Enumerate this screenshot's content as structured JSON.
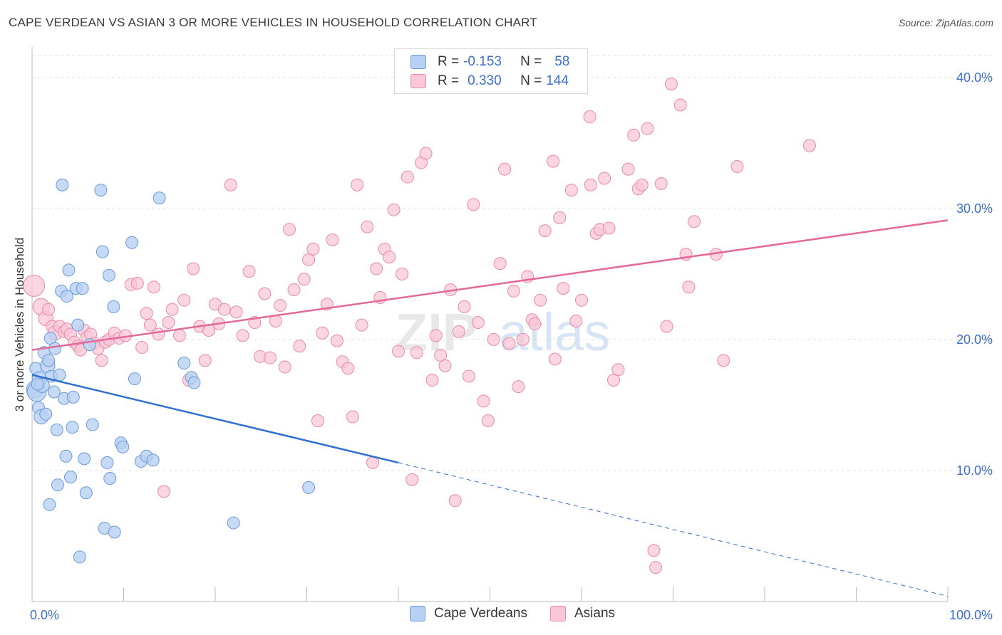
{
  "header": {
    "title": "CAPE VERDEAN VS ASIAN 3 OR MORE VEHICLES IN HOUSEHOLD CORRELATION CHART",
    "source": "Source: ZipAtlas.com"
  },
  "legend": {
    "series": [
      {
        "r_label": "R =",
        "r_value": "-0.153",
        "n_label": "N =",
        "n_value": "58"
      },
      {
        "r_label": "R =",
        "r_value": "0.330",
        "n_label": "N =",
        "n_value": "144"
      }
    ],
    "bottom": [
      "Cape Verdeans",
      "Asians"
    ]
  },
  "watermark": {
    "zip": "ZIP",
    "atlas": "atlas"
  },
  "colors": {
    "blue_fill": "#b8d0f2",
    "blue_stroke": "#6a9bdc",
    "blue_line": "#2f6fd1",
    "pink_fill": "#f9c7d6",
    "pink_stroke": "#e98aa8",
    "pink_line": "#e4699a",
    "axis_text": "#3b6fd0",
    "grid": "#e2e2e2"
  },
  "chart_data": {
    "type": "scatter",
    "title": "CAPE VERDEAN VS ASIAN 3 OR MORE VEHICLES IN HOUSEHOLD CORRELATION CHART",
    "xlabel": "",
    "ylabel": "3 or more Vehicles in Household",
    "xlim": [
      0,
      100
    ],
    "ylim": [
      0,
      42
    ],
    "x_tick_labels": [
      "0.0%",
      "100.0%"
    ],
    "y_ticks": [
      10,
      20,
      30,
      40
    ],
    "y_tick_labels": [
      "10.0%",
      "20.0%",
      "30.0%",
      "40.0%"
    ],
    "series": [
      {
        "name": "Cape Verdeans",
        "r": -0.153,
        "n": 58,
        "trend": {
          "x0": 0,
          "y0": 17.3,
          "x1": 40,
          "y1": 10.6,
          "dash_to_x": 100,
          "dash_to_y": 0.4
        },
        "points": [
          [
            0.3,
            16.2,
            7
          ],
          [
            0.4,
            17.8,
            5
          ],
          [
            0.5,
            16.0,
            8
          ],
          [
            0.7,
            14.8,
            5
          ],
          [
            0.8,
            17.0,
            6
          ],
          [
            1.0,
            14.1,
            6
          ],
          [
            1.1,
            16.5,
            6
          ],
          [
            1.3,
            19.0,
            5
          ],
          [
            1.5,
            14.3,
            5
          ],
          [
            1.7,
            18.0,
            6
          ],
          [
            1.8,
            18.4,
            5
          ],
          [
            1.9,
            7.4,
            5
          ],
          [
            2.0,
            20.1,
            5
          ],
          [
            2.1,
            17.2,
            5
          ],
          [
            2.4,
            16.0,
            5
          ],
          [
            2.5,
            19.3,
            5
          ],
          [
            2.7,
            13.1,
            5
          ],
          [
            2.8,
            8.9,
            5
          ],
          [
            3.0,
            17.3,
            5
          ],
          [
            3.2,
            23.7,
            5
          ],
          [
            3.3,
            31.8,
            5
          ],
          [
            3.5,
            15.5,
            5
          ],
          [
            3.7,
            11.1,
            5
          ],
          [
            3.8,
            23.3,
            5
          ],
          [
            4.0,
            25.3,
            5
          ],
          [
            4.2,
            9.5,
            5
          ],
          [
            4.4,
            13.3,
            5
          ],
          [
            4.5,
            15.6,
            5
          ],
          [
            4.8,
            23.9,
            5
          ],
          [
            5.0,
            21.1,
            5
          ],
          [
            5.2,
            3.4,
            5
          ],
          [
            5.5,
            23.9,
            5
          ],
          [
            5.7,
            10.9,
            5
          ],
          [
            5.9,
            8.3,
            5
          ],
          [
            6.3,
            19.6,
            5
          ],
          [
            6.6,
            13.5,
            5
          ],
          [
            7.5,
            31.4,
            5
          ],
          [
            7.7,
            26.7,
            5
          ],
          [
            7.9,
            5.6,
            5
          ],
          [
            8.2,
            10.6,
            5
          ],
          [
            8.4,
            24.9,
            5
          ],
          [
            8.5,
            9.4,
            5
          ],
          [
            8.9,
            22.5,
            5
          ],
          [
            9.0,
            5.3,
            5
          ],
          [
            9.7,
            12.1,
            5
          ],
          [
            9.9,
            11.8,
            5
          ],
          [
            10.9,
            27.4,
            5
          ],
          [
            11.2,
            17.0,
            5
          ],
          [
            11.9,
            10.7,
            5
          ],
          [
            12.5,
            11.1,
            5
          ],
          [
            13.2,
            10.8,
            5
          ],
          [
            13.9,
            30.8,
            5
          ],
          [
            16.6,
            18.2,
            5
          ],
          [
            17.4,
            17.1,
            5
          ],
          [
            17.7,
            16.7,
            5
          ],
          [
            22.0,
            6.0,
            5
          ],
          [
            30.2,
            8.7,
            5
          ],
          [
            0.6,
            16.6,
            5
          ]
        ]
      },
      {
        "name": "Asians",
        "r": 0.33,
        "n": 144,
        "trend": {
          "x0": 0,
          "y0": 19.2,
          "x1": 100,
          "y1": 29.1
        },
        "points": [
          [
            0.2,
            24.1,
            9
          ],
          [
            1.0,
            22.5,
            7
          ],
          [
            1.5,
            21.6,
            6
          ],
          [
            1.8,
            22.3,
            5
          ],
          [
            2.2,
            21.0,
            5
          ],
          [
            2.5,
            20.5,
            6
          ],
          [
            3.0,
            21.0,
            5
          ],
          [
            3.5,
            20.6,
            5
          ],
          [
            3.8,
            20.8,
            5
          ],
          [
            4.2,
            20.4,
            5
          ],
          [
            4.6,
            19.8,
            5
          ],
          [
            5.0,
            19.5,
            5
          ],
          [
            5.3,
            19.2,
            5
          ],
          [
            5.7,
            20.7,
            5
          ],
          [
            6.0,
            20.2,
            5
          ],
          [
            6.4,
            20.4,
            5
          ],
          [
            6.8,
            19.7,
            5
          ],
          [
            7.2,
            19.3,
            5
          ],
          [
            7.6,
            18.4,
            5
          ],
          [
            8.0,
            19.8,
            5
          ],
          [
            8.4,
            20.0,
            5
          ],
          [
            9.0,
            20.5,
            5
          ],
          [
            9.5,
            20.1,
            5
          ],
          [
            10.2,
            20.3,
            5
          ],
          [
            10.8,
            24.2,
            5
          ],
          [
            11.5,
            24.3,
            5
          ],
          [
            12.0,
            19.4,
            5
          ],
          [
            12.5,
            22.0,
            5
          ],
          [
            12.9,
            21.1,
            5
          ],
          [
            13.3,
            24.0,
            5
          ],
          [
            13.8,
            20.4,
            5
          ],
          [
            14.4,
            8.4,
            5
          ],
          [
            14.9,
            21.3,
            5
          ],
          [
            15.3,
            22.3,
            5
          ],
          [
            16.1,
            20.3,
            5
          ],
          [
            16.6,
            23.0,
            5
          ],
          [
            17.1,
            16.9,
            5
          ],
          [
            17.6,
            25.4,
            5
          ],
          [
            18.3,
            21.0,
            5
          ],
          [
            18.9,
            18.4,
            5
          ],
          [
            19.3,
            20.7,
            5
          ],
          [
            20.0,
            22.7,
            5
          ],
          [
            20.4,
            21.2,
            5
          ],
          [
            21.0,
            22.3,
            5
          ],
          [
            21.7,
            31.8,
            5
          ],
          [
            22.3,
            22.1,
            5
          ],
          [
            23.0,
            20.3,
            5
          ],
          [
            23.7,
            25.2,
            5
          ],
          [
            24.3,
            21.3,
            5
          ],
          [
            24.9,
            18.7,
            5
          ],
          [
            25.4,
            23.5,
            5
          ],
          [
            26.0,
            18.6,
            5
          ],
          [
            26.6,
            21.4,
            5
          ],
          [
            27.1,
            22.6,
            5
          ],
          [
            27.6,
            17.9,
            5
          ],
          [
            28.1,
            28.4,
            5
          ],
          [
            28.6,
            23.8,
            5
          ],
          [
            29.2,
            19.5,
            5
          ],
          [
            29.7,
            24.6,
            5
          ],
          [
            30.2,
            26.1,
            5
          ],
          [
            30.7,
            26.9,
            5
          ],
          [
            31.2,
            13.8,
            5
          ],
          [
            31.7,
            20.5,
            5
          ],
          [
            32.2,
            22.7,
            5
          ],
          [
            32.8,
            27.6,
            5
          ],
          [
            33.3,
            19.9,
            5
          ],
          [
            33.9,
            18.3,
            5
          ],
          [
            34.5,
            17.8,
            5
          ],
          [
            35.0,
            14.1,
            5
          ],
          [
            35.5,
            31.8,
            5
          ],
          [
            36.0,
            21.1,
            5
          ],
          [
            36.6,
            28.6,
            5
          ],
          [
            37.2,
            10.6,
            5
          ],
          [
            37.6,
            25.4,
            5
          ],
          [
            38.0,
            23.2,
            5
          ],
          [
            38.5,
            26.9,
            5
          ],
          [
            39.0,
            26.3,
            5
          ],
          [
            39.5,
            29.9,
            5
          ],
          [
            40.0,
            19.1,
            5
          ],
          [
            40.4,
            25.0,
            5
          ],
          [
            41.0,
            32.4,
            5
          ],
          [
            41.5,
            9.3,
            5
          ],
          [
            42.0,
            19.0,
            5
          ],
          [
            42.5,
            33.5,
            5
          ],
          [
            43.0,
            34.2,
            5
          ],
          [
            43.7,
            16.9,
            5
          ],
          [
            44.1,
            20.3,
            5
          ],
          [
            44.6,
            18.8,
            5
          ],
          [
            45.1,
            18.0,
            5
          ],
          [
            45.7,
            23.8,
            5
          ],
          [
            46.2,
            7.7,
            5
          ],
          [
            46.6,
            20.6,
            5
          ],
          [
            47.2,
            22.5,
            5
          ],
          [
            47.7,
            17.2,
            5
          ],
          [
            48.2,
            30.3,
            5
          ],
          [
            48.7,
            21.3,
            5
          ],
          [
            49.3,
            15.3,
            5
          ],
          [
            49.8,
            13.8,
            5
          ],
          [
            50.4,
            20.0,
            5
          ],
          [
            51.1,
            25.8,
            5
          ],
          [
            51.6,
            33.0,
            5
          ],
          [
            52.1,
            19.7,
            5
          ],
          [
            52.6,
            23.7,
            5
          ],
          [
            53.1,
            16.4,
            5
          ],
          [
            53.6,
            20.0,
            5
          ],
          [
            54.1,
            24.8,
            5
          ],
          [
            54.6,
            21.5,
            5
          ],
          [
            54.9,
            21.2,
            5
          ],
          [
            55.5,
            23.0,
            5
          ],
          [
            56.0,
            28.3,
            5
          ],
          [
            56.9,
            33.6,
            5
          ],
          [
            57.1,
            18.5,
            5
          ],
          [
            57.6,
            29.3,
            5
          ],
          [
            58.0,
            23.9,
            5
          ],
          [
            58.9,
            31.4,
            5
          ],
          [
            59.4,
            21.4,
            5
          ],
          [
            60.0,
            23.0,
            5
          ],
          [
            61.0,
            31.8,
            5
          ],
          [
            60.9,
            37.0,
            5
          ],
          [
            61.6,
            28.1,
            5
          ],
          [
            62.0,
            28.4,
            5
          ],
          [
            62.5,
            32.3,
            5
          ],
          [
            63.0,
            28.5,
            5
          ],
          [
            63.5,
            16.9,
            5
          ],
          [
            64.0,
            17.7,
            5
          ],
          [
            65.1,
            33.0,
            5
          ],
          [
            65.7,
            35.6,
            5
          ],
          [
            66.2,
            31.5,
            5
          ],
          [
            66.6,
            31.8,
            5
          ],
          [
            67.2,
            36.1,
            5
          ],
          [
            67.9,
            3.9,
            5
          ],
          [
            68.1,
            2.6,
            5
          ],
          [
            68.7,
            31.9,
            5
          ],
          [
            69.3,
            21.0,
            5
          ],
          [
            69.8,
            39.5,
            5
          ],
          [
            70.8,
            37.9,
            5
          ],
          [
            71.4,
            26.5,
            5
          ],
          [
            71.7,
            24.0,
            5
          ],
          [
            72.3,
            29.0,
            5
          ],
          [
            74.7,
            26.5,
            5
          ],
          [
            75.5,
            18.4,
            5
          ],
          [
            77.0,
            33.2,
            5
          ],
          [
            84.9,
            34.8,
            5
          ]
        ]
      }
    ]
  }
}
